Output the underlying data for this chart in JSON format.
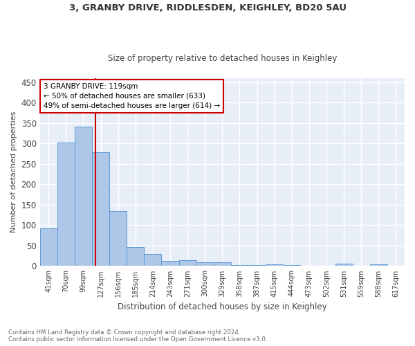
{
  "title1": "3, GRANBY DRIVE, RIDDLESDEN, KEIGHLEY, BD20 5AU",
  "title2": "Size of property relative to detached houses in Keighley",
  "xlabel": "Distribution of detached houses by size in Keighley",
  "ylabel": "Number of detached properties",
  "bin_labels": [
    "41sqm",
    "70sqm",
    "99sqm",
    "127sqm",
    "156sqm",
    "185sqm",
    "214sqm",
    "243sqm",
    "271sqm",
    "300sqm",
    "329sqm",
    "358sqm",
    "387sqm",
    "415sqm",
    "444sqm",
    "473sqm",
    "502sqm",
    "531sqm",
    "559sqm",
    "588sqm",
    "617sqm"
  ],
  "bar_values": [
    92,
    302,
    342,
    279,
    134,
    47,
    30,
    12,
    14,
    9,
    10,
    2,
    2,
    4,
    2,
    0,
    0,
    5,
    0,
    4,
    0
  ],
  "bar_color": "#aec6e8",
  "bar_edge_color": "#5b9bd5",
  "vline_color": "#cc0000",
  "annotation_text": "3 GRANBY DRIVE: 119sqm\n← 50% of detached houses are smaller (633)\n49% of semi-detached houses are larger (614) →",
  "annotation_box_color": "#cc0000",
  "ylim": [
    0,
    460
  ],
  "yticks": [
    0,
    50,
    100,
    150,
    200,
    250,
    300,
    350,
    400,
    450
  ],
  "background_color": "#e8eef8",
  "footer_text": "Contains HM Land Registry data © Crown copyright and database right 2024.\nContains public sector information licensed under the Open Government Licence v3.0.",
  "grid_color": "#ffffff",
  "fig_width": 6.0,
  "fig_height": 5.0,
  "dpi": 100
}
